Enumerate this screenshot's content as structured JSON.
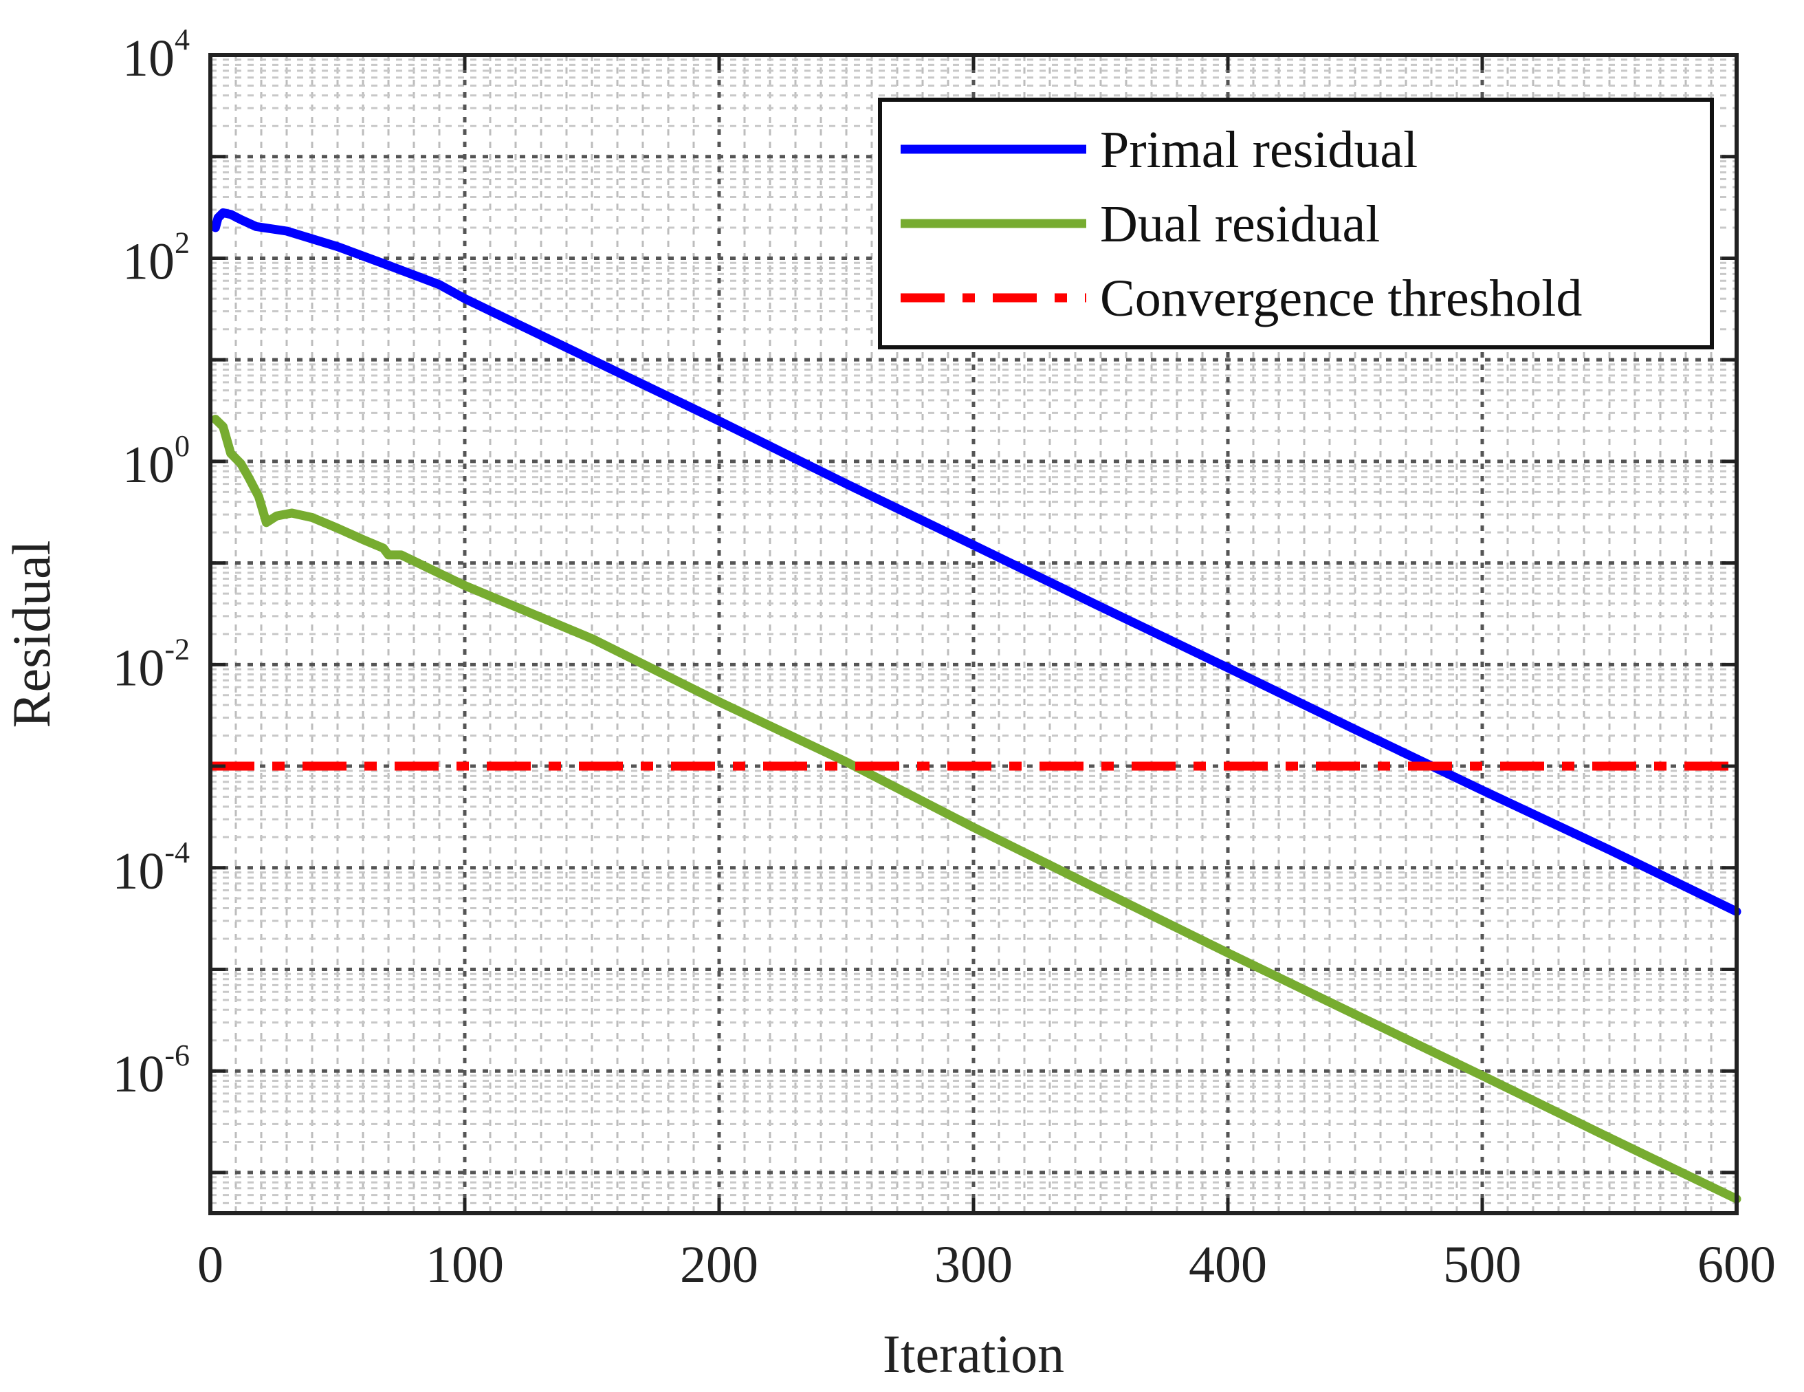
{
  "chart_data": {
    "type": "line",
    "xlabel": "Iteration",
    "ylabel": "Residual",
    "xlim": [
      0,
      600
    ],
    "ylim_log10": [
      -7.4,
      4
    ],
    "yscale": "log",
    "grid": true,
    "legend_position": "top-right",
    "x_ticks": [
      {
        "value": 0,
        "label": "0"
      },
      {
        "value": 100,
        "label": "100"
      },
      {
        "value": 200,
        "label": "200"
      },
      {
        "value": 300,
        "label": "300"
      },
      {
        "value": 400,
        "label": "400"
      },
      {
        "value": 500,
        "label": "500"
      },
      {
        "value": 600,
        "label": "600"
      }
    ],
    "y_ticks": [
      {
        "exponent": 4,
        "base": "10",
        "power": "4"
      },
      {
        "exponent": 2,
        "base": "10",
        "power": "2"
      },
      {
        "exponent": 0,
        "base": "10",
        "power": "0"
      },
      {
        "exponent": -2,
        "base": "10",
        "power": "-2"
      },
      {
        "exponent": -4,
        "base": "10",
        "power": "-4"
      },
      {
        "exponent": -6,
        "base": "10",
        "power": "-6"
      }
    ],
    "series": [
      {
        "name": "Primal residual",
        "color": "#0000ff",
        "style": "solid",
        "points": [
          [
            2,
            200
          ],
          [
            3,
            250
          ],
          [
            5,
            280
          ],
          [
            8,
            270
          ],
          [
            12,
            240
          ],
          [
            18,
            205
          ],
          [
            30,
            185
          ],
          [
            50,
            130
          ],
          [
            70,
            85
          ],
          [
            90,
            55
          ],
          [
            100,
            40
          ],
          [
            150,
            10
          ],
          [
            200,
            2.5
          ],
          [
            250,
            0.6
          ],
          [
            300,
            0.15
          ],
          [
            350,
            0.037
          ],
          [
            400,
            0.0093
          ],
          [
            450,
            0.0023
          ],
          [
            500,
            0.00058
          ],
          [
            550,
            0.00015
          ],
          [
            600,
            3.7e-05
          ]
        ]
      },
      {
        "name": "Dual residual",
        "color": "#77ac30",
        "style": "solid",
        "points": [
          [
            2,
            2.6
          ],
          [
            5,
            2.2
          ],
          [
            8,
            1.2
          ],
          [
            12,
            0.95
          ],
          [
            15,
            0.7
          ],
          [
            19,
            0.45
          ],
          [
            22,
            0.25
          ],
          [
            26,
            0.29
          ],
          [
            32,
            0.31
          ],
          [
            40,
            0.28
          ],
          [
            50,
            0.22
          ],
          [
            60,
            0.17
          ],
          [
            68,
            0.14
          ],
          [
            70,
            0.12
          ],
          [
            75,
            0.12
          ],
          [
            100,
            0.06
          ],
          [
            150,
            0.018
          ],
          [
            200,
            0.0043
          ],
          [
            250,
            0.0011
          ],
          [
            300,
            0.00025
          ],
          [
            350,
            6e-05
          ],
          [
            400,
            1.45e-05
          ],
          [
            450,
            3.6e-06
          ],
          [
            500,
            9e-07
          ],
          [
            550,
            2.2e-07
          ],
          [
            600,
            5.5e-08
          ]
        ]
      },
      {
        "name": "Convergence threshold",
        "color": "#ff0000",
        "style": "dashdot",
        "points": [
          [
            0,
            0.001
          ],
          [
            600,
            0.001
          ]
        ]
      }
    ]
  }
}
